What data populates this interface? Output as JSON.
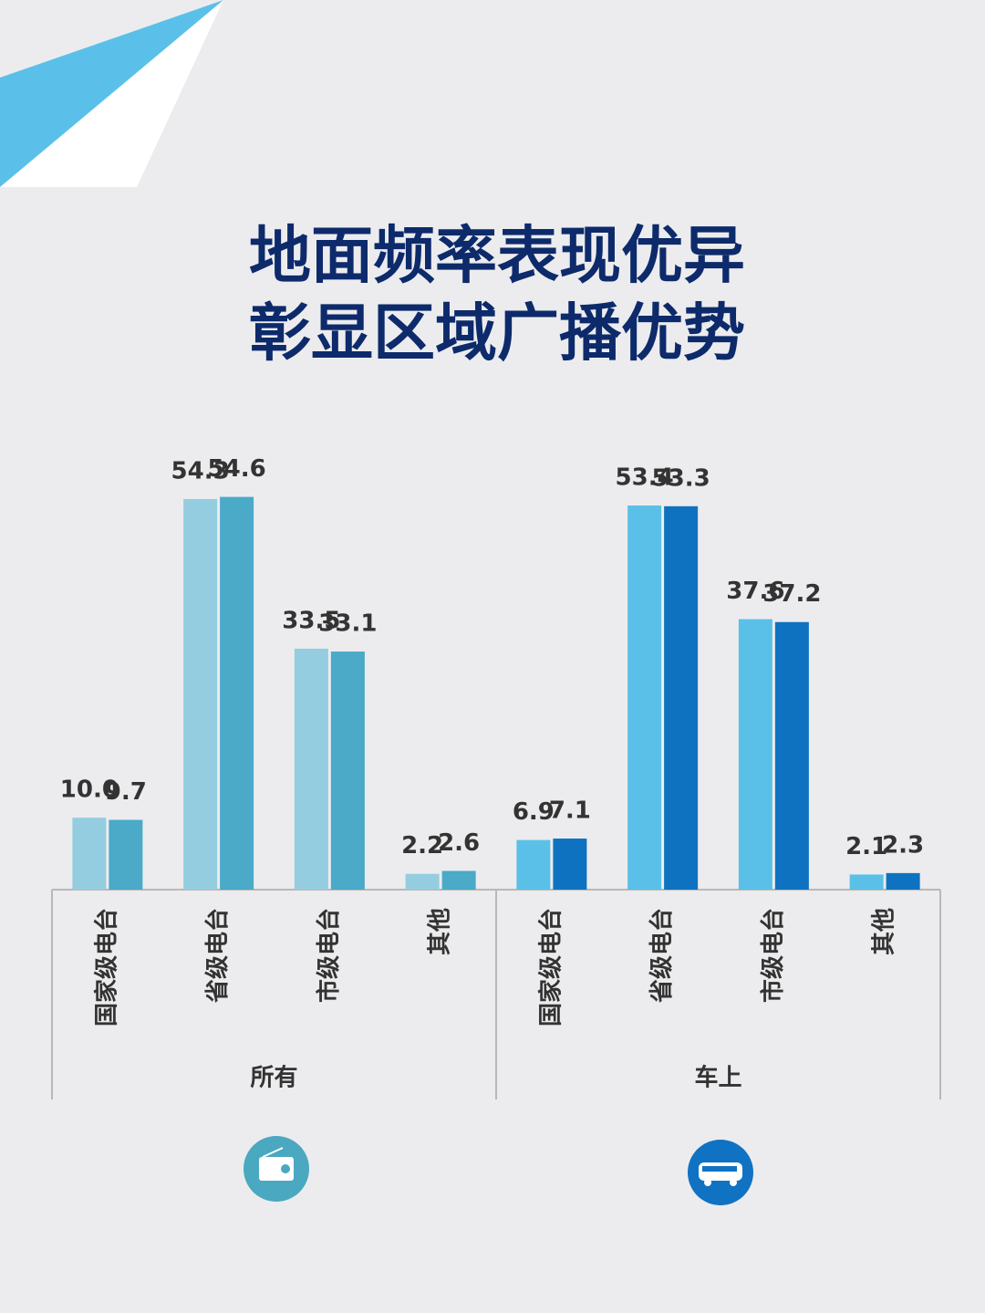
{
  "title": [
    "地面频率表现优异",
    "彰显区域广播优势"
  ],
  "chart_data": [
    {
      "type": "bar",
      "label": "所有",
      "categories": [
        "国家级电台",
        "省级电台",
        "市级电台",
        "其他"
      ],
      "ylim": [
        0,
        60
      ],
      "series": [
        {
          "color": "#94cde0",
          "values": [
            10,
            54.3,
            33.5,
            2.2
          ],
          "value_labels": [
            "10.0",
            "54.3",
            "33.5",
            "2.2"
          ]
        },
        {
          "color": "#4aaac8",
          "values": [
            9.7,
            54.6,
            33.1,
            2.6
          ]
        }
      ]
    },
    {
      "type": "bar",
      "label": "车上",
      "categories": [
        "国家级电台",
        "省级电台",
        "市级电台",
        "其他"
      ],
      "ylim": [
        0,
        60
      ],
      "series": [
        {
          "color": "#5bc0e8",
          "values": [
            6.9,
            53.4,
            37.6,
            2.1
          ]
        },
        {
          "color": "#0f72c0",
          "values": [
            7.1,
            53.3,
            37.2,
            2.3
          ]
        }
      ]
    }
  ]
}
